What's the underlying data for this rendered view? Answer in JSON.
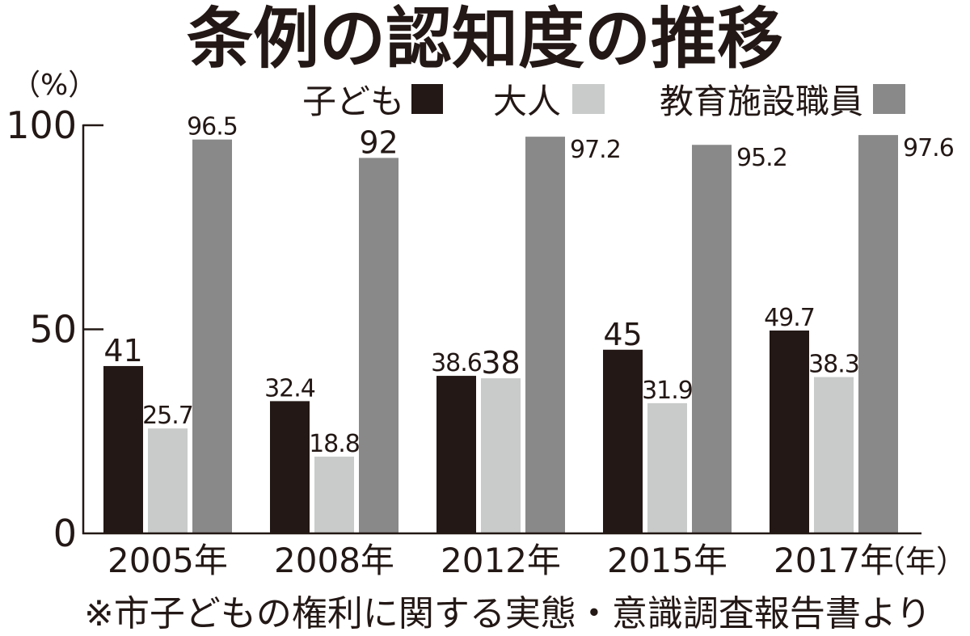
{
  "chart_data": {
    "type": "bar",
    "title": "条例の認知度の推移",
    "ylabel": "（%）",
    "xlabel": "（年）",
    "categories": [
      "2005年",
      "2008年",
      "2012年",
      "2015年",
      "2017年"
    ],
    "series": [
      {
        "name": "子ども",
        "color": "#231815",
        "values": [
          41,
          32.4,
          38.6,
          45,
          49.7
        ]
      },
      {
        "name": "大人",
        "color": "#c9caca",
        "values": [
          25.7,
          18.8,
          38,
          31.9,
          38.3
        ]
      },
      {
        "name": "教育施設職員",
        "color": "#898989",
        "values": [
          96.5,
          92,
          97.2,
          95.2,
          97.6
        ]
      }
    ],
    "ylim": [
      0,
      100
    ],
    "yticks": [
      0,
      50,
      100
    ],
    "grid": false,
    "legend": "top-right",
    "axis_color": "#231815"
  },
  "footnote": "※市子どもの権利に関する実態・意識調査報告書より"
}
